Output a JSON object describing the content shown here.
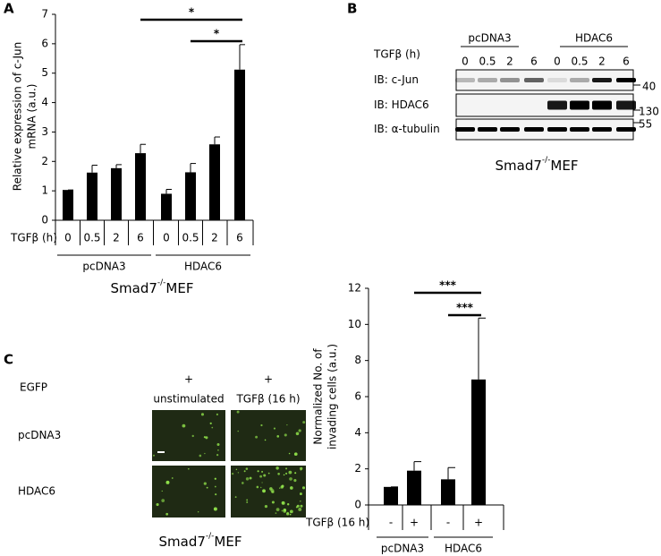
{
  "chart_data": [
    {
      "type": "bar",
      "panel": "A",
      "ylabel": [
        "Relative expression of c-Jun",
        "mRNA (a.u.)"
      ],
      "row_label": "TGFβ (h)",
      "categories": [
        "0",
        "0.5",
        "2",
        "6",
        "0",
        "0.5",
        "2",
        "6"
      ],
      "values": [
        1.03,
        1.62,
        1.77,
        2.28,
        0.9,
        1.63,
        2.58,
        5.12
      ],
      "errors": [
        0,
        0.25,
        0.12,
        0.3,
        0.15,
        0.3,
        0.25,
        0.85
      ],
      "color": "#000000",
      "ylim": [
        0,
        7
      ],
      "yticks": [
        0,
        1,
        2,
        3,
        4,
        5,
        6,
        7
      ],
      "groups": [
        "pcDNA3",
        "HDAC6"
      ],
      "significance": [
        "*",
        "*"
      ],
      "footer": {
        "base": "Smad7",
        "sup": "-/-",
        "tail": "MEF"
      }
    },
    {
      "type": "bar",
      "ylabel": [
        "Normalized No. of",
        "invading cells (a.u.)"
      ],
      "row_label": "TGFβ (16 h)",
      "categories": [
        "-",
        "+",
        "-",
        "+"
      ],
      "values": [
        1.0,
        1.9,
        1.42,
        6.95
      ],
      "errors": [
        0,
        0.5,
        0.65,
        3.4
      ],
      "color": "#000000",
      "ylim": [
        0,
        12
      ],
      "yticks": [
        0,
        2,
        4,
        6,
        8,
        10,
        12
      ],
      "groups": [
        "pcDNA3",
        "HDAC6"
      ],
      "significance": [
        "***",
        "***"
      ]
    }
  ],
  "blot": {
    "panel": "B",
    "groups": [
      "pcDNA3",
      "HDAC6"
    ],
    "row_label": "TGFβ (h)",
    "lanes": [
      "0",
      "0.5",
      "2",
      "6",
      "0",
      "0.5",
      "2",
      "6"
    ],
    "probes": [
      "IB: c-Jun",
      "IB: HDAC6",
      "IB: α-tubulin"
    ],
    "markers": [
      "40",
      "130",
      "55"
    ],
    "footer": {
      "base": "Smad7",
      "sup": "-/-",
      "tail": "MEF"
    }
  },
  "micrographs": {
    "panel": "C",
    "row_label": "EGFP",
    "columns": [
      {
        "sign": "+",
        "label": "unstimulated"
      },
      {
        "sign": "+",
        "label": "TGFβ (16 h)"
      }
    ],
    "rows": [
      "pcDNA3",
      "HDAC6"
    ],
    "footer": {
      "base": "Smad7",
      "sup": "-/-",
      "tail": "MEF"
    }
  }
}
